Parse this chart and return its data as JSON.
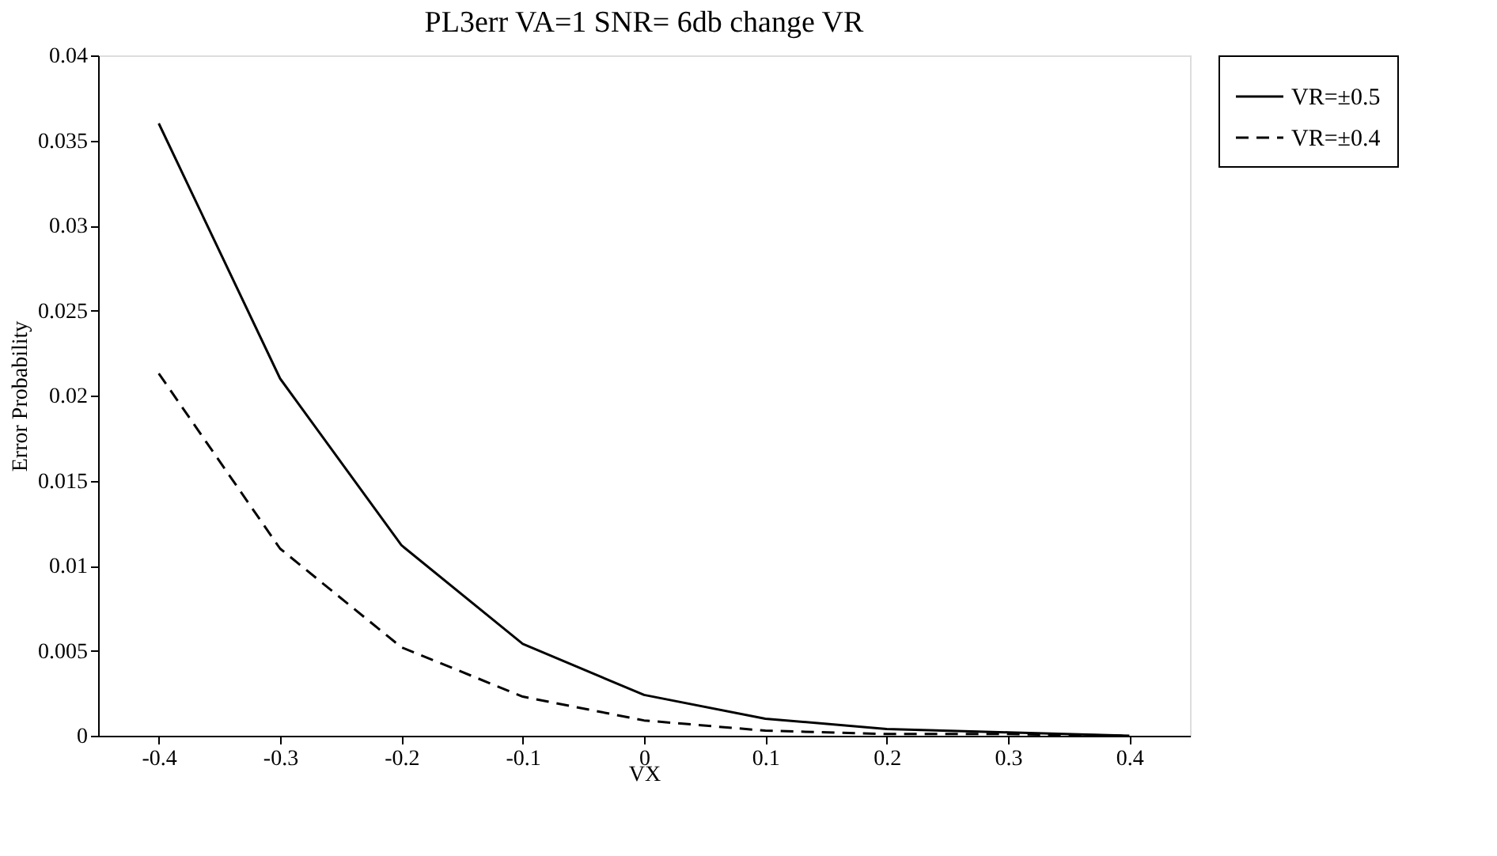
{
  "chart_data": {
    "type": "line",
    "title": "PL3err VA=1 SNR= 6db change VR",
    "xlabel": "VX",
    "ylabel": "Error Probability",
    "categories": [
      "-0.4",
      "-0.3",
      "-0.2",
      "-0.1",
      "0",
      "0.1",
      "0.2",
      "0.3",
      "0.4"
    ],
    "series": [
      {
        "name": "VR=±0.5",
        "color": "#000000",
        "line_style": "solid",
        "values": [
          0.036,
          0.021,
          0.0112,
          0.0054,
          0.0024,
          0.001,
          0.0004,
          0.0002,
          0.0
        ]
      },
      {
        "name": "VR=±0.4",
        "color": "#000000",
        "line_style": "dashed",
        "values": [
          0.0213,
          0.011,
          0.0052,
          0.0023,
          0.0009,
          0.0003,
          0.0001,
          0.0001,
          0.0
        ]
      }
    ],
    "ylim": [
      0,
      0.04
    ],
    "yticks": [
      0,
      0.005,
      0.01,
      0.015,
      0.02,
      0.025,
      0.03,
      0.035,
      0.04
    ],
    "grid": false,
    "legend": "right",
    "marker": "none"
  }
}
